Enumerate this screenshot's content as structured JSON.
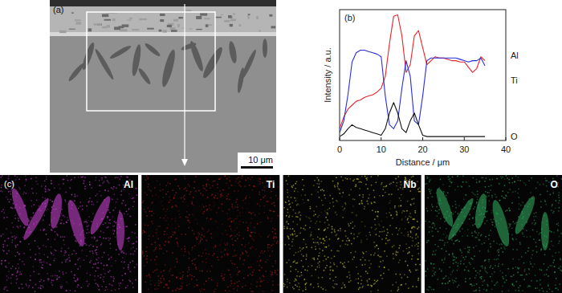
{
  "chart_data": {
    "type": "line",
    "title": "(b)",
    "x": [
      0,
      1,
      2,
      3,
      4,
      5,
      6,
      7,
      8,
      9,
      10,
      11,
      12,
      13,
      14,
      15,
      16,
      17,
      18,
      19,
      20,
      21,
      22,
      23,
      24,
      25,
      26,
      27,
      28,
      29,
      30,
      31,
      32,
      33,
      34,
      35
    ],
    "series": [
      {
        "name": "Al",
        "color": "#e8262a",
        "values": [
          9,
          18,
          24,
          27,
          30,
          31,
          33,
          34,
          35,
          37,
          40,
          49,
          74,
          95,
          96,
          80,
          52,
          58,
          80,
          84,
          71,
          58,
          61,
          64,
          63,
          63,
          62,
          61,
          61,
          60,
          60,
          56,
          52,
          55,
          64,
          61
        ]
      },
      {
        "name": "Ti",
        "color": "#2a2ee0",
        "values": [
          6,
          15,
          35,
          60,
          67,
          69,
          69,
          68,
          67,
          66,
          64,
          34,
          12,
          9,
          15,
          40,
          61,
          49,
          15,
          12,
          34,
          61,
          63,
          63,
          63,
          63,
          63,
          63,
          63,
          62,
          61,
          60,
          61,
          61,
          63,
          57
        ]
      },
      {
        "name": "O",
        "color": "#111111",
        "values": [
          3,
          5,
          9,
          12,
          10,
          9,
          8,
          7,
          6,
          5,
          4,
          9,
          21,
          29,
          21,
          9,
          6,
          15,
          21,
          12,
          4,
          3,
          3,
          3,
          3,
          3,
          3,
          3,
          3,
          3,
          3,
          3,
          3,
          3,
          3,
          3
        ]
      }
    ],
    "xlabel": "Distance / μm",
    "ylabel": "Intensity / a.u.",
    "xlim": [
      0,
      40
    ],
    "xticks": [
      0,
      10,
      20,
      30,
      40
    ],
    "ylim": [
      0,
      100
    ],
    "tick_labels": "x"
  },
  "panels": {
    "a": {
      "label": "(a)",
      "scale_bar": "10 μm"
    },
    "c": {
      "label": "(c)",
      "maps": [
        "Al",
        "Ti",
        "Nb",
        "O"
      ]
    }
  }
}
